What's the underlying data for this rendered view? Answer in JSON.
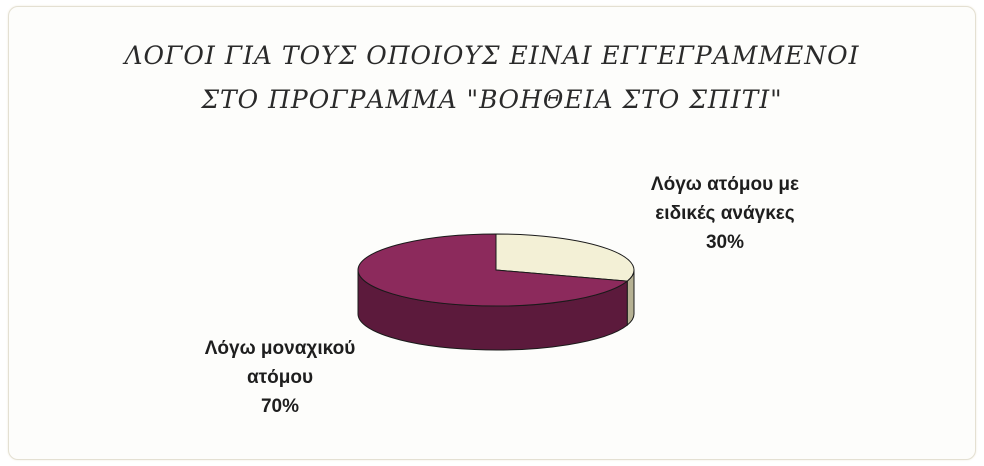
{
  "chart_data": {
    "type": "pie",
    "title_lines": [
      "ΛΟΓΟΙ ΓΙΑ ΤΟΥΣ ΟΠΟΙΟΥΣ ΕΙΝΑΙ ΕΓΓΕΓΡΑΜΜΕΝΟΙ",
      "ΣΤΟ ΠΡΟΓΡΑΜΜΑ \"ΒΟΗΘΕΙΑ ΣΤΟ ΣΠΙΤΙ\""
    ],
    "slices": [
      {
        "label_lines": [
          "Λόγω μοναχικού",
          "ατόμου"
        ],
        "value": 70,
        "value_label": "70%",
        "color": "#8c2a5c",
        "side_color": "#5c1a3c"
      },
      {
        "label_lines": [
          "Λόγω ατόμου με",
          "ειδικές ανάγκες"
        ],
        "value": 30,
        "value_label": "30%",
        "color": "#f3f0d6",
        "side_color": "#b6b294"
      }
    ]
  }
}
